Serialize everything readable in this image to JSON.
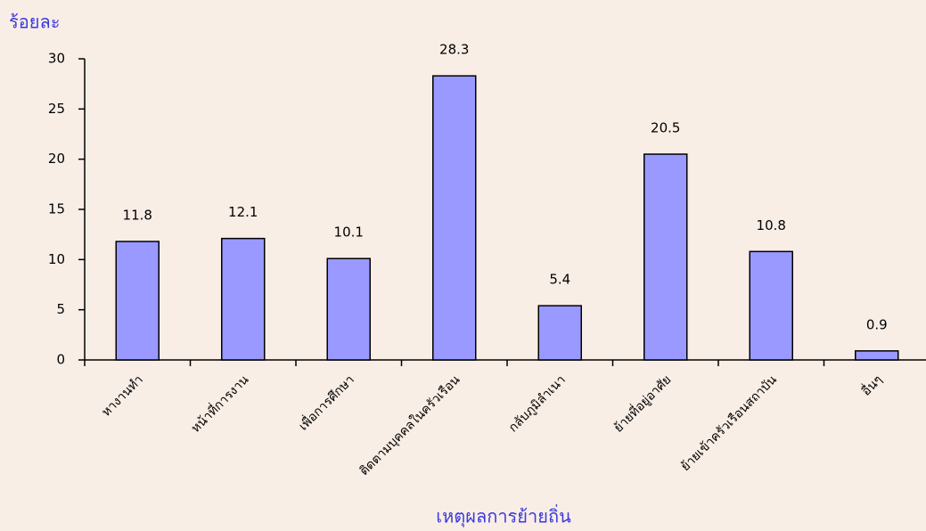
{
  "chart_data": {
    "type": "bar",
    "y_label": "ร้อยละ",
    "x_label": "เหตุผลการย้ายถิ่น",
    "categories": [
      "หางานทำ",
      "หน้าที่การงาน",
      "เพื่อการศึกษา",
      "ติดตามบุคคลในครัวเรือน",
      "กลับภูมิลำเนา",
      "ย้ายที่อยู่อาศัย",
      "ย้ายเข้าครัวเรือนสถาบัน",
      "อื่นๆ"
    ],
    "values": [
      11.8,
      12.1,
      10.1,
      28.3,
      5.4,
      20.5,
      10.8,
      0.9
    ],
    "color": "#9999ff",
    "ylim": [
      0,
      30
    ],
    "yticks": [
      0,
      5,
      10,
      15,
      20,
      25,
      30
    ],
    "grid": false
  }
}
